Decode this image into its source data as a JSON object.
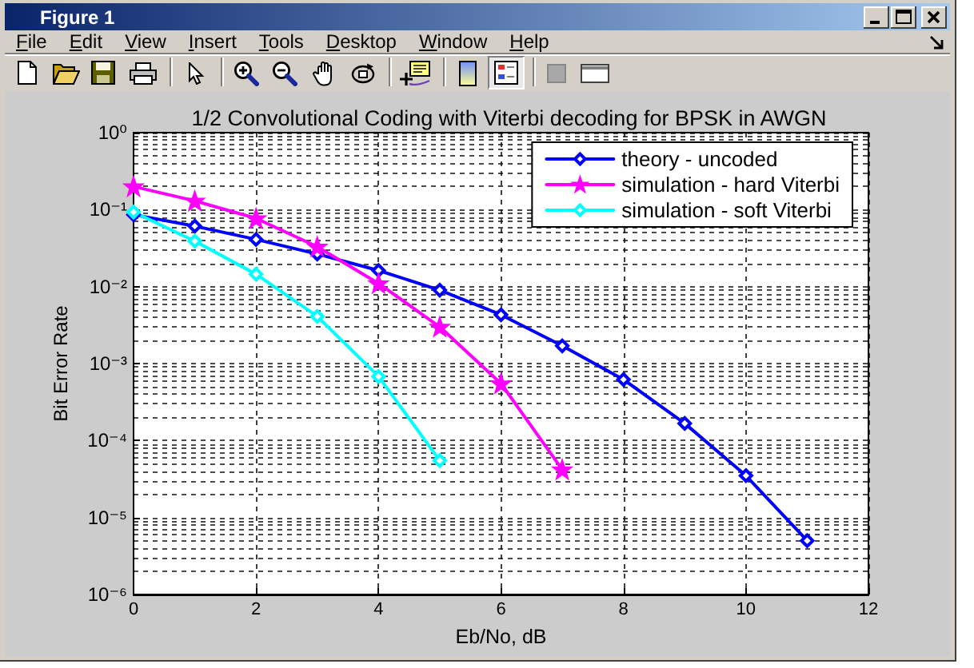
{
  "chart_data": {
    "type": "line",
    "title": "1/2 Convolutional Coding with Viterbi decoding for BPSK in AWGN",
    "xlabel": "Eb/No, dB",
    "ylabel": "Bit Error Rate",
    "annotations": [
      "Figure 1",
      "File",
      "Edit",
      "View",
      "Insert",
      "Tools",
      "Desktop",
      "Window",
      "Help"
    ],
    "log": "y",
    "grid": true,
    "legend": "top right",
    "line_style": "solid",
    "xlim": [
      0,
      12
    ],
    "xticks": [
      0,
      2,
      4,
      6,
      8,
      10,
      12
    ],
    "ylim": [
      1e-06,
      1
    ],
    "yticks": [
      {
        "value": 1,
        "label": "10⁰"
      },
      {
        "value": 0.1,
        "label": "10⁻¹"
      },
      {
        "value": 0.01,
        "label": "10⁻²"
      },
      {
        "value": 0.001,
        "label": "10⁻³"
      },
      {
        "value": 0.0001,
        "label": "10⁻⁴"
      },
      {
        "value": 1e-05,
        "label": "10⁻⁵"
      },
      {
        "value": 1e-06,
        "label": "10⁻⁶"
      }
    ],
    "series": [
      {
        "name": "theory - uncoded",
        "color": "#0000ff",
        "marker": "diamond",
        "x": [
          0,
          1,
          2,
          3,
          4,
          5,
          6,
          7,
          8,
          9,
          10,
          11
        ],
        "values": [
          0.086,
          0.061,
          0.041,
          0.0265,
          0.0162,
          0.009,
          0.0043,
          0.0017,
          0.00062,
          0.000167,
          3.5e-05,
          5e-06
        ]
      },
      {
        "name": "simulation - hard Viterbi",
        "color": "#ff00ff",
        "marker": "star",
        "x": [
          0,
          1,
          2,
          3,
          4,
          5,
          6,
          7
        ],
        "values": [
          0.2,
          0.13,
          0.077,
          0.033,
          0.011,
          0.003,
          0.00055,
          4.2e-05
        ]
      },
      {
        "name": "simulation - soft Viterbi",
        "color": "#00ffff",
        "marker": "diamond",
        "x": [
          0,
          1,
          2,
          3,
          4,
          5
        ],
        "values": [
          0.093,
          0.039,
          0.0145,
          0.0041,
          0.00068,
          5.5e-05
        ]
      }
    ]
  }
}
